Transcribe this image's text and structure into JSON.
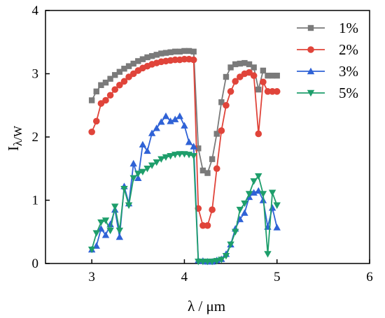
{
  "chart_data": {
    "type": "line",
    "xlabel": "λ / μm",
    "ylabel": "Iλ/W",
    "xlim": [
      2.5,
      6
    ],
    "ylim": [
      0,
      4
    ],
    "xticks": [
      "3",
      "4",
      "5",
      "6"
    ],
    "yticks": [
      "0",
      "1",
      "2",
      "3",
      "4"
    ],
    "grid": false,
    "legend_position": "top-right",
    "series": [
      {
        "name": "1%",
        "color": "#7a7a7a",
        "marker": "square",
        "x": [
          3.0,
          3.05,
          3.1,
          3.15,
          3.2,
          3.25,
          3.3,
          3.35,
          3.4,
          3.45,
          3.5,
          3.55,
          3.6,
          3.65,
          3.7,
          3.75,
          3.8,
          3.85,
          3.9,
          3.95,
          4.0,
          4.05,
          4.1,
          4.15,
          4.2,
          4.25,
          4.3,
          4.35,
          4.4,
          4.45,
          4.5,
          4.55,
          4.6,
          4.65,
          4.7,
          4.75,
          4.8,
          4.85,
          4.9,
          4.95,
          5.0
        ],
        "y": [
          2.58,
          2.72,
          2.82,
          2.86,
          2.92,
          2.98,
          3.03,
          3.08,
          3.12,
          3.16,
          3.2,
          3.23,
          3.26,
          3.28,
          3.3,
          3.32,
          3.33,
          3.34,
          3.35,
          3.35,
          3.36,
          3.36,
          3.35,
          1.82,
          1.47,
          1.43,
          1.65,
          2.05,
          2.55,
          2.95,
          3.1,
          3.15,
          3.16,
          3.17,
          3.15,
          3.1,
          2.75,
          3.05,
          2.97,
          2.97,
          2.97
        ]
      },
      {
        "name": "2%",
        "color": "#e0443a",
        "marker": "circle",
        "x": [
          3.0,
          3.05,
          3.1,
          3.15,
          3.2,
          3.25,
          3.3,
          3.35,
          3.4,
          3.45,
          3.5,
          3.55,
          3.6,
          3.65,
          3.7,
          3.75,
          3.8,
          3.85,
          3.9,
          3.95,
          4.0,
          4.05,
          4.1,
          4.15,
          4.2,
          4.25,
          4.3,
          4.35,
          4.4,
          4.45,
          4.5,
          4.55,
          4.6,
          4.65,
          4.7,
          4.75,
          4.8,
          4.85,
          4.9,
          4.95,
          5.0
        ],
        "y": [
          2.08,
          2.25,
          2.53,
          2.58,
          2.66,
          2.75,
          2.82,
          2.88,
          2.95,
          3.0,
          3.05,
          3.09,
          3.12,
          3.15,
          3.17,
          3.19,
          3.2,
          3.21,
          3.22,
          3.22,
          3.23,
          3.23,
          3.22,
          0.87,
          0.6,
          0.6,
          0.85,
          1.5,
          2.1,
          2.5,
          2.72,
          2.88,
          2.95,
          3.0,
          3.02,
          2.97,
          2.05,
          2.87,
          2.72,
          2.72,
          2.72
        ]
      },
      {
        "name": "3%",
        "color": "#2f62d6",
        "marker": "triangle-up",
        "x": [
          3.0,
          3.05,
          3.1,
          3.15,
          3.2,
          3.25,
          3.3,
          3.35,
          3.4,
          3.45,
          3.5,
          3.55,
          3.6,
          3.65,
          3.7,
          3.75,
          3.8,
          3.85,
          3.9,
          3.95,
          4.0,
          4.05,
          4.1,
          4.15,
          4.2,
          4.25,
          4.3,
          4.35,
          4.4,
          4.45,
          4.5,
          4.55,
          4.6,
          4.65,
          4.7,
          4.75,
          4.8,
          4.85,
          4.9,
          4.95,
          5.0
        ],
        "y": [
          0.22,
          0.28,
          0.55,
          0.45,
          0.62,
          0.85,
          0.42,
          1.22,
          0.95,
          1.58,
          1.35,
          1.88,
          1.78,
          2.06,
          2.14,
          2.24,
          2.33,
          2.25,
          2.28,
          2.33,
          2.18,
          1.92,
          1.85,
          0.05,
          0.04,
          0.03,
          0.03,
          0.05,
          0.07,
          0.15,
          0.3,
          0.55,
          0.7,
          0.8,
          1.05,
          1.12,
          1.15,
          1.0,
          0.58,
          0.88,
          0.57
        ]
      },
      {
        "name": "5%",
        "color": "#1e9e6b",
        "marker": "triangle-down",
        "x": [
          3.0,
          3.05,
          3.1,
          3.15,
          3.2,
          3.25,
          3.3,
          3.35,
          3.4,
          3.45,
          3.5,
          3.55,
          3.6,
          3.65,
          3.7,
          3.75,
          3.8,
          3.85,
          3.9,
          3.95,
          4.0,
          4.05,
          4.1,
          4.15,
          4.2,
          4.25,
          4.3,
          4.35,
          4.4,
          4.45,
          4.5,
          4.55,
          4.6,
          4.65,
          4.7,
          4.75,
          4.8,
          4.85,
          4.9,
          4.95,
          5.0
        ],
        "y": [
          0.22,
          0.48,
          0.65,
          0.68,
          0.52,
          0.9,
          0.52,
          1.18,
          0.92,
          1.35,
          1.42,
          1.45,
          1.5,
          1.55,
          1.6,
          1.65,
          1.68,
          1.7,
          1.72,
          1.73,
          1.73,
          1.72,
          1.7,
          0.03,
          0.03,
          0.03,
          0.03,
          0.04,
          0.06,
          0.12,
          0.3,
          0.5,
          0.85,
          0.95,
          1.1,
          1.3,
          1.38,
          1.1,
          0.15,
          1.12,
          0.92
        ]
      }
    ]
  }
}
